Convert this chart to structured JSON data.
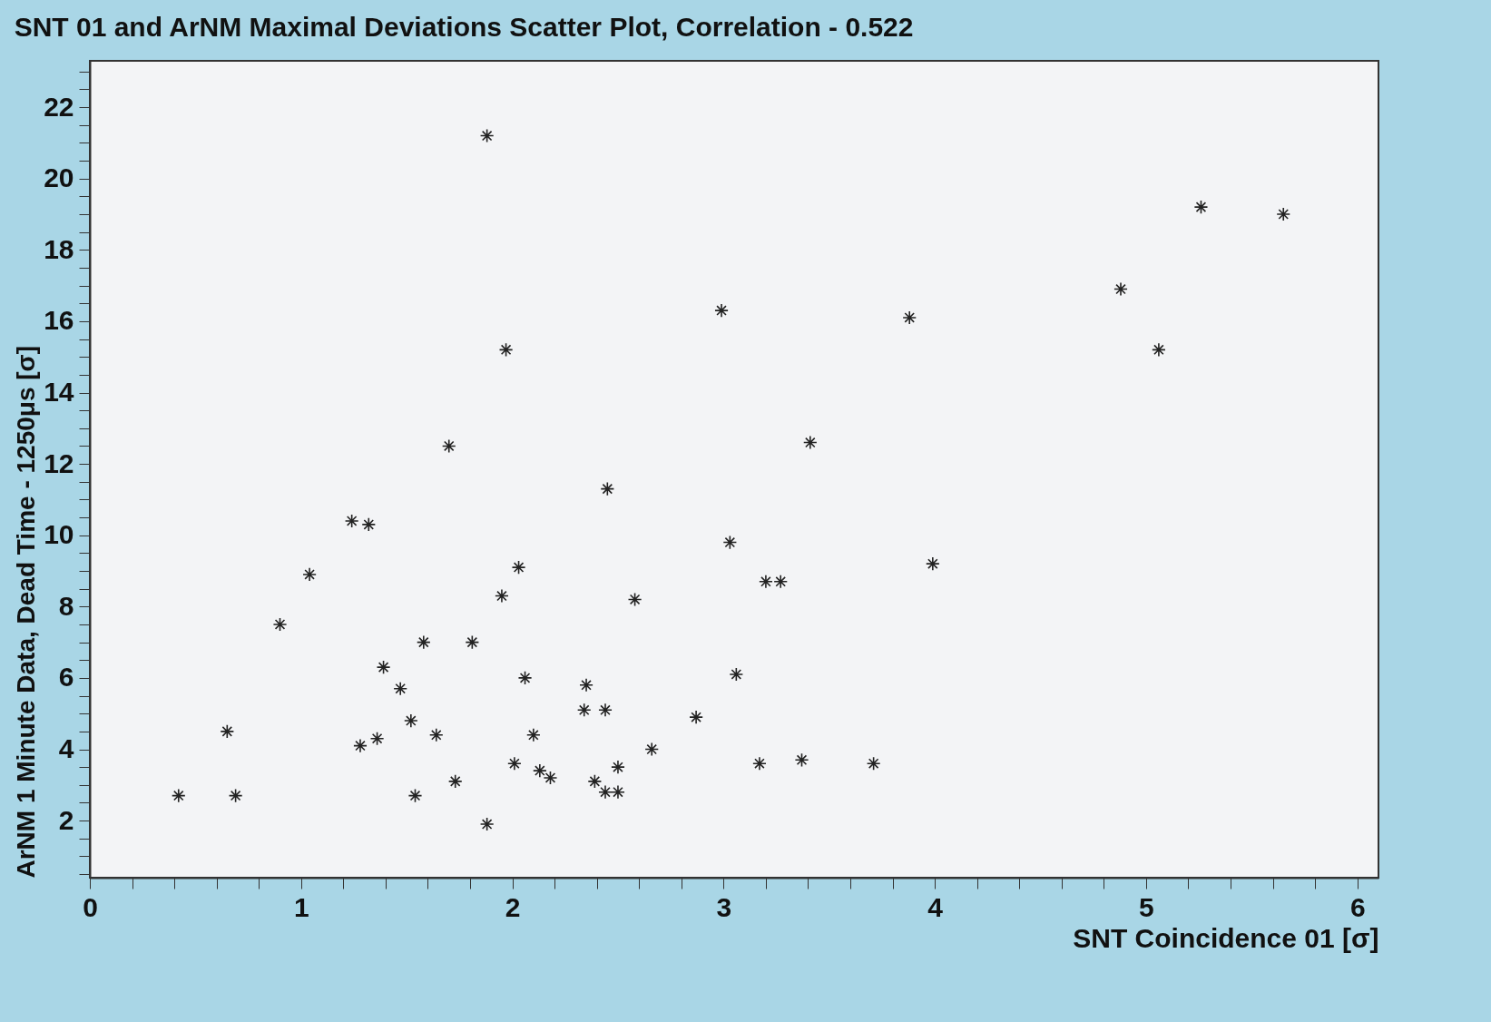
{
  "chart_data": {
    "type": "scatter",
    "title": "SNT 01 and ArNM Maximal Deviations Scatter Plot, Correlation - 0.522",
    "xlabel": "SNT Coincidence 01 [σ]",
    "ylabel": "ArNM 1 Minute Data, Dead Time - 1250μs [σ]",
    "marker": "cross",
    "grid": false,
    "xlim": [
      0,
      6.1
    ],
    "ylim": [
      0.4,
      23.3
    ],
    "xticks": [
      0,
      {
        "value": 0.2,
        "label": null
      },
      {
        "value": 0.4,
        "label": null
      },
      {
        "value": 0.6,
        "label": null
      },
      {
        "value": 0.8,
        "label": null
      },
      1,
      {
        "value": 1.2,
        "label": null
      },
      {
        "value": 1.4,
        "label": null
      },
      {
        "value": 1.6,
        "label": null
      },
      {
        "value": 1.8,
        "label": null
      },
      2,
      {
        "value": 2.2,
        "label": null
      },
      {
        "value": 2.4,
        "label": null
      },
      {
        "value": 2.6,
        "label": null
      },
      {
        "value": 2.8,
        "label": null
      },
      3,
      {
        "value": 3.2,
        "label": null
      },
      {
        "value": 3.4,
        "label": null
      },
      {
        "value": 3.6,
        "label": null
      },
      {
        "value": 3.8,
        "label": null
      },
      4,
      {
        "value": 4.2,
        "label": null
      },
      {
        "value": 4.4,
        "label": null
      },
      {
        "value": 4.6,
        "label": null
      },
      {
        "value": 4.8,
        "label": null
      },
      5,
      {
        "value": 5.2,
        "label": null
      },
      {
        "value": 5.4,
        "label": null
      },
      {
        "value": 5.6,
        "label": null
      },
      {
        "value": 5.8,
        "label": null
      },
      6
    ],
    "yticks": [
      {
        "value": 0.5,
        "label": null
      },
      {
        "value": 1,
        "label": null
      },
      {
        "value": 1.5,
        "label": null
      },
      2,
      {
        "value": 2.5,
        "label": null
      },
      {
        "value": 3,
        "label": null
      },
      {
        "value": 3.5,
        "label": null
      },
      4,
      {
        "value": 4.5,
        "label": null
      },
      {
        "value": 5,
        "label": null
      },
      {
        "value": 5.5,
        "label": null
      },
      6,
      {
        "value": 6.5,
        "label": null
      },
      {
        "value": 7,
        "label": null
      },
      {
        "value": 7.5,
        "label": null
      },
      8,
      {
        "value": 8.5,
        "label": null
      },
      {
        "value": 9,
        "label": null
      },
      {
        "value": 9.5,
        "label": null
      },
      10,
      {
        "value": 10.5,
        "label": null
      },
      {
        "value": 11,
        "label": null
      },
      {
        "value": 11.5,
        "label": null
      },
      12,
      {
        "value": 12.5,
        "label": null
      },
      {
        "value": 13,
        "label": null
      },
      {
        "value": 13.5,
        "label": null
      },
      14,
      {
        "value": 14.5,
        "label": null
      },
      {
        "value": 15,
        "label": null
      },
      {
        "value": 15.5,
        "label": null
      },
      16,
      {
        "value": 16.5,
        "label": null
      },
      {
        "value": 17,
        "label": null
      },
      {
        "value": 17.5,
        "label": null
      },
      18,
      {
        "value": 18.5,
        "label": null
      },
      {
        "value": 19,
        "label": null
      },
      {
        "value": 19.5,
        "label": null
      },
      20,
      {
        "value": 20.5,
        "label": null
      },
      {
        "value": 21,
        "label": null
      },
      {
        "value": 21.5,
        "label": null
      },
      22,
      {
        "value": 22.5,
        "label": null
      },
      {
        "value": 23,
        "label": null
      }
    ],
    "series": [
      {
        "color": "#222222",
        "x": [
          0.42,
          0.65,
          0.69,
          0.9,
          1.04,
          1.24,
          1.32,
          1.28,
          1.36,
          1.39,
          1.47,
          1.52,
          1.54,
          1.58,
          1.64,
          1.7,
          1.73,
          1.81,
          1.88,
          1.88,
          1.95,
          1.97,
          2.01,
          2.03,
          2.06,
          2.1,
          2.13,
          2.18,
          2.35,
          2.34,
          2.44,
          2.39,
          2.45,
          2.44,
          2.5,
          2.5,
          2.58,
          2.66,
          2.87,
          2.99,
          3.03,
          3.06,
          3.17,
          3.2,
          3.27,
          3.37,
          3.41,
          3.71,
          3.88,
          3.99,
          4.88,
          5.06,
          5.26,
          5.65
        ],
        "values": [
          2.7,
          4.5,
          2.7,
          7.5,
          8.9,
          10.4,
          10.3,
          4.1,
          4.3,
          6.3,
          5.7,
          4.8,
          2.7,
          7.0,
          4.4,
          12.5,
          3.1,
          7.0,
          21.2,
          1.9,
          8.3,
          15.2,
          3.6,
          9.1,
          6.0,
          4.4,
          3.4,
          3.2,
          5.8,
          5.1,
          5.1,
          3.1,
          11.3,
          2.8,
          2.8,
          3.5,
          8.2,
          4.0,
          4.9,
          16.3,
          9.8,
          6.1,
          3.6,
          8.7,
          8.7,
          3.7,
          12.6,
          3.6,
          16.1,
          9.2,
          16.9,
          15.2,
          19.2,
          19.0
        ]
      }
    ]
  }
}
